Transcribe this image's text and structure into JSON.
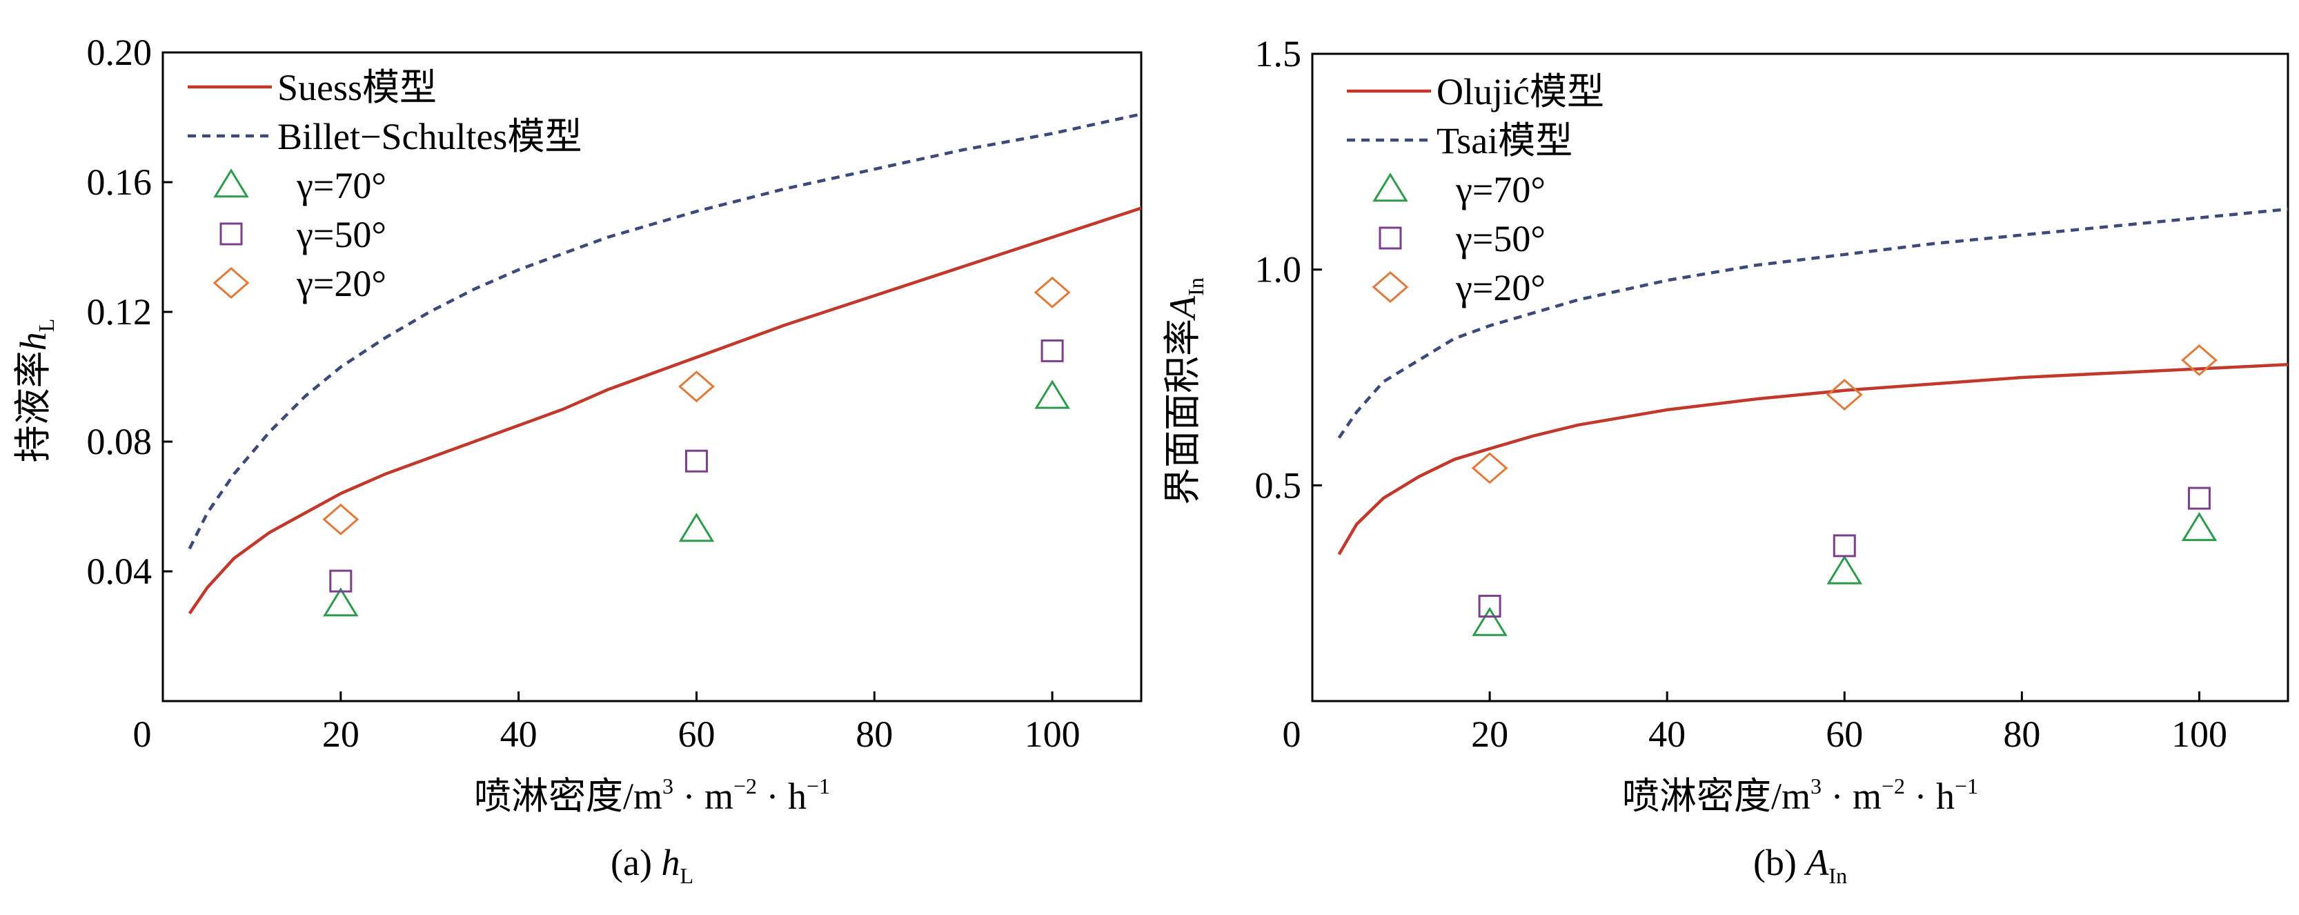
{
  "figure": {
    "panels": [
      {
        "caption_prefix": "(a) ",
        "caption_var": "h",
        "caption_sub": "L",
        "xlabel_main": "喷淋密度/m",
        "xlabel_sup1": "3",
        "xlabel_mid1": " · m",
        "xlabel_sup2": "−2",
        "xlabel_mid2": " · h",
        "xlabel_sup3": "−1",
        "ylabel_main": "持液率",
        "ylabel_var": "h",
        "ylabel_sub": "L"
      },
      {
        "caption_prefix": "(b) ",
        "caption_var": "A",
        "caption_sub": "In",
        "xlabel_main": "喷淋密度/m",
        "xlabel_sup1": "3",
        "xlabel_mid1": " · m",
        "xlabel_sup2": "−2",
        "xlabel_mid2": " · h",
        "xlabel_sup3": "−1",
        "ylabel_main": "界面面积率",
        "ylabel_var": "A",
        "ylabel_sub": "In"
      }
    ]
  },
  "chart_data": [
    {
      "type": "line",
      "xlim": [
        0,
        110
      ],
      "ylim": [
        0,
        0.2
      ],
      "x_ticks": [
        0,
        20,
        40,
        60,
        80,
        100
      ],
      "x_tick_labels": [
        "0",
        "20",
        "40",
        "60",
        "80",
        "100"
      ],
      "y_ticks": [
        0.04,
        0.08,
        0.12,
        0.16,
        0.2
      ],
      "y_tick_labels": [
        "0.04",
        "0.08",
        "0.12",
        "0.16",
        "0.20"
      ],
      "grid": false,
      "legend_position": "top-left",
      "series": [
        {
          "name": "Suess模型",
          "kind": "line",
          "style": "solid",
          "color": "#c0392b",
          "x": [
            3,
            5,
            8,
            12,
            16,
            20,
            25,
            30,
            35,
            40,
            45,
            50,
            55,
            60,
            70,
            80,
            90,
            100,
            110
          ],
          "y": [
            0.027,
            0.035,
            0.044,
            0.052,
            0.058,
            0.064,
            0.07,
            0.075,
            0.08,
            0.085,
            0.09,
            0.096,
            0.101,
            0.106,
            0.116,
            0.125,
            0.134,
            0.143,
            0.152
          ]
        },
        {
          "name": "Billet−Schultes模型",
          "kind": "line",
          "style": "dashed",
          "color": "#3c4a7a",
          "x": [
            3,
            5,
            8,
            12,
            16,
            20,
            25,
            30,
            35,
            40,
            50,
            60,
            70,
            80,
            90,
            100,
            110
          ],
          "y": [
            0.047,
            0.058,
            0.07,
            0.083,
            0.094,
            0.103,
            0.112,
            0.12,
            0.127,
            0.133,
            0.143,
            0.151,
            0.158,
            0.164,
            0.17,
            0.175,
            0.181
          ]
        },
        {
          "name": "γ=70°",
          "kind": "marker",
          "marker": "triangle",
          "color": "#2e9a4b",
          "x": [
            20,
            60,
            100
          ],
          "y": [
            0.03,
            0.053,
            0.094
          ]
        },
        {
          "name": "γ=50°",
          "kind": "marker",
          "marker": "square",
          "color": "#7b3f8c",
          "x": [
            20,
            60,
            100
          ],
          "y": [
            0.037,
            0.074,
            0.108
          ]
        },
        {
          "name": "γ=20°",
          "kind": "marker",
          "marker": "diamond",
          "color": "#e07a3a",
          "x": [
            20,
            60,
            100
          ],
          "y": [
            0.056,
            0.097,
            0.126
          ]
        }
      ]
    },
    {
      "type": "line",
      "xlim": [
        0,
        110
      ],
      "ylim": [
        0,
        1.5
      ],
      "y_plot_min": 0,
      "x_ticks": [
        0,
        20,
        40,
        60,
        80,
        100
      ],
      "x_tick_labels": [
        "0",
        "20",
        "40",
        "60",
        "80",
        "100"
      ],
      "y_ticks": [
        0.5,
        1.0,
        1.5
      ],
      "y_tick_labels": [
        "0.5",
        "1.0",
        "1.5"
      ],
      "grid": false,
      "legend_position": "top-left",
      "series": [
        {
          "name": "Olujić模型",
          "kind": "line",
          "style": "solid",
          "color": "#c0392b",
          "x": [
            3,
            5,
            8,
            12,
            16,
            20,
            25,
            30,
            40,
            50,
            60,
            70,
            80,
            90,
            100,
            110
          ],
          "y": [
            0.34,
            0.41,
            0.47,
            0.52,
            0.56,
            0.585,
            0.615,
            0.64,
            0.675,
            0.7,
            0.72,
            0.735,
            0.75,
            0.76,
            0.77,
            0.78
          ]
        },
        {
          "name": "Tsai模型",
          "kind": "line",
          "style": "dashed",
          "color": "#3c4a7a",
          "x": [
            3,
            5,
            8,
            12,
            16,
            20,
            25,
            30,
            40,
            50,
            60,
            70,
            80,
            90,
            100,
            110
          ],
          "y": [
            0.61,
            0.67,
            0.74,
            0.79,
            0.84,
            0.87,
            0.9,
            0.93,
            0.975,
            1.01,
            1.035,
            1.06,
            1.08,
            1.1,
            1.12,
            1.14
          ]
        },
        {
          "name": "γ=70°",
          "kind": "marker",
          "marker": "triangle",
          "color": "#2e9a4b",
          "x": [
            20,
            60,
            100
          ],
          "y": [
            0.18,
            0.3,
            0.4
          ]
        },
        {
          "name": "γ=50°",
          "kind": "marker",
          "marker": "square",
          "color": "#7b3f8c",
          "x": [
            20,
            60,
            100
          ],
          "y": [
            0.22,
            0.36,
            0.47
          ]
        },
        {
          "name": "γ=20°",
          "kind": "marker",
          "marker": "diamond",
          "color": "#e07a3a",
          "x": [
            20,
            60,
            100
          ],
          "y": [
            0.54,
            0.71,
            0.79
          ]
        }
      ]
    }
  ]
}
